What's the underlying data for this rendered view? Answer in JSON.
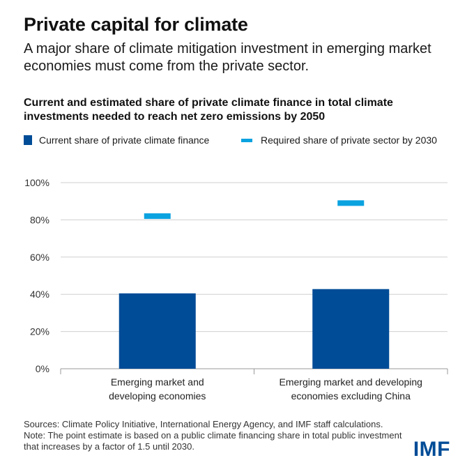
{
  "header": {
    "title": "Private capital for climate",
    "subtitle": "A major share of climate mitigation investment in emerging market economies must come from the private sector."
  },
  "legend": {
    "bar_label": "Current share of private climate finance",
    "marker_label": "Required share of private sector by 2030"
  },
  "colors": {
    "bar": "#004c97",
    "marker": "#0ba2e0",
    "grid": "#cfcfcf",
    "axis": "#9a9a9a"
  },
  "chart_data": {
    "type": "bar",
    "title": "Current and estimated share of private climate finance in total climate investments needed to reach net zero emissions by 2050",
    "xlabel": "",
    "ylabel": "",
    "ylim": [
      0,
      100
    ],
    "grid": true,
    "legend_position": "top-left",
    "y_ticks": [
      "0%",
      "20%",
      "40%",
      "60%",
      "80%",
      "100%"
    ],
    "categories": [
      [
        "Emerging market and",
        "developing economies"
      ],
      [
        "Emerging market and developing",
        "economies excluding China"
      ]
    ],
    "series": [
      {
        "name": "Current share of private climate finance",
        "kind": "bar",
        "values": [
          40.5,
          42.8
        ]
      },
      {
        "name": "Required share of private sector by 2030",
        "kind": "marker",
        "values": [
          82,
          89
        ]
      }
    ]
  },
  "footer": {
    "source_line1": "Sources: Climate Policy Initiative, International Energy Agency, and IMF staff calculations.",
    "source_line2": "Note: The point estimate is based on a public climate financing share in total public investment that increases by a factor of 1.5 until 2030.",
    "logo": "IMF"
  }
}
